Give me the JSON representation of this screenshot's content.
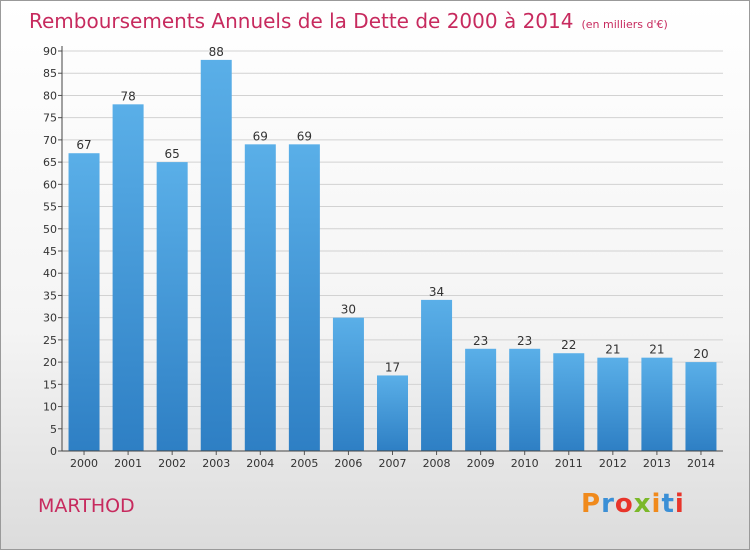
{
  "title": "Remboursements Annuels de la Dette de 2000 à 2014",
  "unit": "(en milliers d'€)",
  "commune": "MARTHOD",
  "brand": {
    "letters": [
      "P",
      "r",
      "o",
      "x",
      "i",
      "t",
      "i"
    ],
    "colors": [
      "#f08a1c",
      "#3a8fd6",
      "#e8352b",
      "#7bb829",
      "#f08a1c",
      "#3a8fd6",
      "#e8352b"
    ]
  },
  "colors": {
    "bar_top": "#5aafe8",
    "bar_bottom": "#2e7fc4",
    "accent": "#c72a5e"
  },
  "chart_data": {
    "type": "bar",
    "categories": [
      "2000",
      "2001",
      "2002",
      "2003",
      "2004",
      "2005",
      "2006",
      "2007",
      "2008",
      "2009",
      "2010",
      "2011",
      "2012",
      "2013",
      "2014"
    ],
    "values": [
      67,
      78,
      65,
      88,
      69,
      69,
      30,
      17,
      34,
      23,
      23,
      22,
      21,
      21,
      20
    ],
    "title": "Remboursements Annuels de la Dette de 2000 à 2014",
    "xlabel": "",
    "ylabel": "",
    "ylim": [
      0,
      90
    ],
    "yticks": [
      0,
      5,
      10,
      15,
      20,
      25,
      30,
      35,
      40,
      45,
      50,
      55,
      60,
      65,
      70,
      75,
      80,
      85,
      90
    ],
    "grid": true,
    "data_labels": true
  }
}
